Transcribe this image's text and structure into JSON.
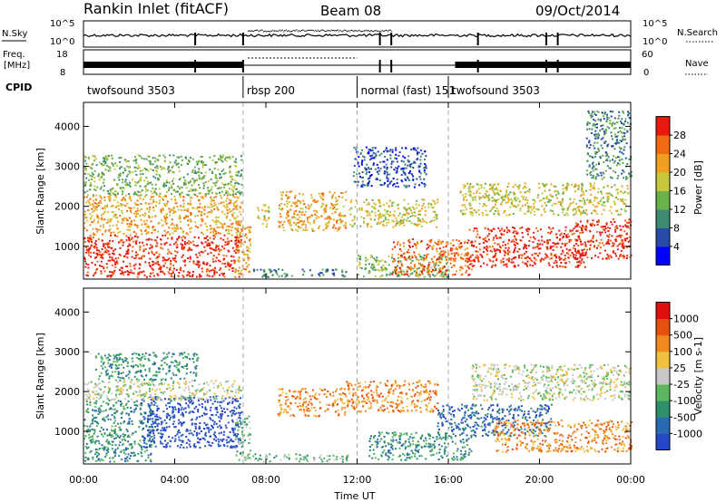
{
  "header": {
    "station": "Rankin Inlet (fitACF)",
    "beam": "Beam 08",
    "date": "09/Oct/2014"
  },
  "left_labels": {
    "nsky": "N.Sky",
    "freq_line1": "Freq.",
    "freq_line2": "[MHz]",
    "cpid": "CPID"
  },
  "right_labels": {
    "nsearch": "N.Search",
    "nave": "Nave"
  },
  "noise_axis": {
    "left_ticks": [
      "10^5",
      "10^0"
    ],
    "right_ticks": [
      "10^5",
      "10^0"
    ]
  },
  "freq_axis": {
    "left_ticks": [
      "18",
      "8"
    ],
    "right_ticks": [
      "60",
      "0"
    ]
  },
  "cpid_segments": [
    {
      "label": "twofsound 3503",
      "start_h": 0.0,
      "end_h": 7.0
    },
    {
      "label": "rbsp 200",
      "start_h": 7.0,
      "end_h": 12.0
    },
    {
      "label": "normal (fast) 151",
      "start_h": 12.0,
      "end_h": 16.0
    },
    {
      "label": "twofsound 3503",
      "start_h": 16.0,
      "end_h": 24.0
    }
  ],
  "x_axis": {
    "label": "Time UT",
    "tick_labels": [
      "00:00",
      "04:00",
      "08:00",
      "12:00",
      "16:00",
      "20:00",
      "00:00"
    ],
    "tick_hours": [
      0,
      4,
      8,
      12,
      16,
      20,
      24
    ],
    "range_h": [
      0,
      24
    ]
  },
  "chart_data": [
    {
      "type": "heatmap",
      "name": "power",
      "ylabel": "Slant Range [km]",
      "yticks": [
        "1000",
        "2000",
        "3000",
        "4000"
      ],
      "ytick_values": [
        1000,
        2000,
        3000,
        4000
      ],
      "ylim": [
        180,
        4600
      ],
      "xlim": [
        0,
        24
      ],
      "colorbar": {
        "label": "Power [dB]",
        "tick_labels": [
          "4",
          "8",
          "12",
          "16",
          "20",
          "24",
          "28"
        ],
        "tick_values": [
          4,
          8,
          12,
          16,
          20,
          24,
          28
        ],
        "range": [
          0,
          32
        ],
        "colors": [
          "#0000ff",
          "#2a4aa8",
          "#3d8c6f",
          "#6cb04a",
          "#c8c83c",
          "#f0a020",
          "#f06a10",
          "#e81a10"
        ]
      },
      "clusters": [
        {
          "t": [
            0.0,
            6.9
          ],
          "r": [
            250,
            1300
          ],
          "level": 7
        },
        {
          "t": [
            0.0,
            6.9
          ],
          "r": [
            1300,
            2300
          ],
          "level": 5
        },
        {
          "t": [
            0.0,
            6.9
          ],
          "r": [
            2300,
            3300
          ],
          "level": 3
        },
        {
          "t": [
            6.6,
            7.3
          ],
          "r": [
            300,
            1600
          ],
          "level": 5
        },
        {
          "t": [
            7.4,
            11.6
          ],
          "r": [
            250,
            450
          ],
          "level": 2
        },
        {
          "t": [
            7.6,
            8.1
          ],
          "r": [
            1500,
            2100
          ],
          "level": 4
        },
        {
          "t": [
            8.5,
            11.5
          ],
          "r": [
            1400,
            2400
          ],
          "level": 5
        },
        {
          "t": [
            11.6,
            15.5
          ],
          "r": [
            1500,
            2200
          ],
          "level": 4
        },
        {
          "t": [
            11.8,
            15.0
          ],
          "r": [
            2500,
            3500
          ],
          "level": 1
        },
        {
          "t": [
            12.0,
            16.0
          ],
          "r": [
            250,
            800
          ],
          "level": 3
        },
        {
          "t": [
            13.5,
            17.0
          ],
          "r": [
            300,
            1200
          ],
          "level": 6
        },
        {
          "t": [
            16.8,
            22.0
          ],
          "r": [
            500,
            1500
          ],
          "level": 7
        },
        {
          "t": [
            16.5,
            23.9
          ],
          "r": [
            1800,
            2600
          ],
          "level": 4
        },
        {
          "t": [
            21.5,
            24.0
          ],
          "r": [
            700,
            1700
          ],
          "level": 7
        },
        {
          "t": [
            22.0,
            24.0
          ],
          "r": [
            2700,
            4400
          ],
          "level": 2
        }
      ]
    },
    {
      "type": "heatmap",
      "name": "velocity",
      "ylabel": "Slant Range [km]",
      "yticks": [
        "1000",
        "2000",
        "3000",
        "4000"
      ],
      "ytick_values": [
        1000,
        2000,
        3000,
        4000
      ],
      "ylim": [
        180,
        4600
      ],
      "xlim": [
        0,
        24
      ],
      "colorbar": {
        "label": "Velocity [m s-1]",
        "tick_labels": [
          "1000",
          "500",
          "100",
          "25",
          "-25",
          "-100",
          "-500",
          "-1000"
        ],
        "tick_values": [
          1000,
          500,
          100,
          25,
          -25,
          -100,
          -500,
          -1000
        ],
        "colors": [
          "#2846c8",
          "#2a6ab4",
          "#2f8f6a",
          "#5cb860",
          "#c8c8c8",
          "#f0c040",
          "#f08a20",
          "#e85010",
          "#e01010"
        ]
      },
      "clusters": [
        {
          "t": [
            0.0,
            3.0
          ],
          "r": [
            250,
            1800
          ],
          "level": 2
        },
        {
          "t": [
            2.5,
            6.9
          ],
          "r": [
            600,
            1900
          ],
          "level": 0
        },
        {
          "t": [
            0.0,
            6.9
          ],
          "r": [
            1800,
            2300
          ],
          "level": 4
        },
        {
          "t": [
            0.5,
            5.0
          ],
          "r": [
            2300,
            3000
          ],
          "level": 2
        },
        {
          "t": [
            6.6,
            7.3
          ],
          "r": [
            300,
            1400
          ],
          "level": 3
        },
        {
          "t": [
            7.4,
            11.6
          ],
          "r": [
            250,
            450
          ],
          "level": 3
        },
        {
          "t": [
            8.5,
            11.5
          ],
          "r": [
            1400,
            2100
          ],
          "level": 6
        },
        {
          "t": [
            11.5,
            15.5
          ],
          "r": [
            1500,
            2300
          ],
          "level": 6
        },
        {
          "t": [
            12.5,
            17.0
          ],
          "r": [
            300,
            1000
          ],
          "level": 2
        },
        {
          "t": [
            15.5,
            20.5
          ],
          "r": [
            900,
            1700
          ],
          "level": 1
        },
        {
          "t": [
            17.0,
            24.0
          ],
          "r": [
            1800,
            2700
          ],
          "level": 4
        },
        {
          "t": [
            18.0,
            24.0
          ],
          "r": [
            500,
            1300
          ],
          "level": 6
        }
      ]
    }
  ]
}
